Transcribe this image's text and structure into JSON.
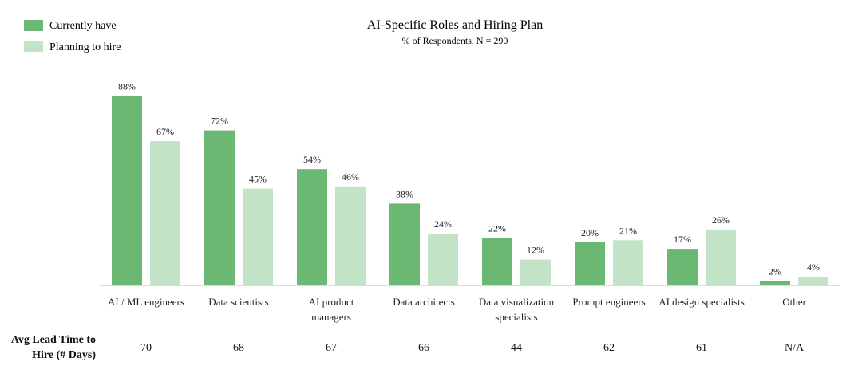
{
  "chart_data": {
    "type": "bar",
    "title": "AI-Specific Roles and Hiring Plan",
    "subtitle": "% of Respondents, N = 290",
    "legend": {
      "placement": "top-left",
      "items": [
        "Currently have",
        "Planning to hire"
      ]
    },
    "categories": [
      "AI / ML engineers",
      "Data scientists",
      "AI product managers",
      "Data architects",
      "Data visualization specialists",
      "Prompt engineers",
      "AI design specialists",
      "Other"
    ],
    "category_lines": [
      [
        "AI / ML engineers"
      ],
      [
        "Data scientists"
      ],
      [
        "AI product",
        "managers"
      ],
      [
        "Data architects"
      ],
      [
        "Data visualization",
        "specialists"
      ],
      [
        "Prompt engineers"
      ],
      [
        "AI design specialists"
      ],
      [
        "Other"
      ]
    ],
    "series": [
      {
        "name": "Currently have",
        "color": "#6bb872",
        "values": [
          88,
          72,
          54,
          38,
          22,
          20,
          17,
          2
        ]
      },
      {
        "name": "Planning to hire",
        "color": "#c3e3c6",
        "values": [
          67,
          45,
          46,
          24,
          12,
          21,
          26,
          4
        ]
      }
    ],
    "value_suffix": "%",
    "ylim": [
      0,
      100
    ],
    "grid": false,
    "lead_time": {
      "title_lines": [
        "Avg Lead Time to",
        "Hire (# Days)"
      ],
      "values": [
        "70",
        "68",
        "67",
        "66",
        "44",
        "62",
        "61",
        "N/A"
      ]
    }
  }
}
